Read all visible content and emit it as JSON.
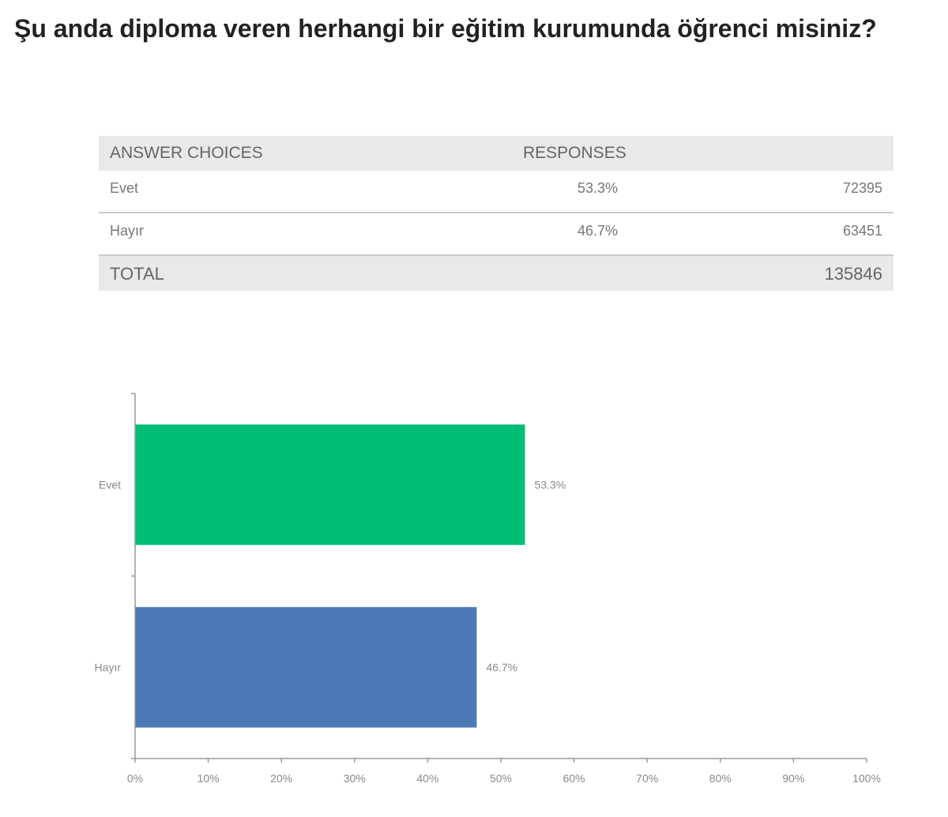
{
  "title": "Şu anda diploma veren herhangi bir eğitim kurumunda öğrenci misiniz?",
  "table": {
    "header_choices": "ANSWER CHOICES",
    "header_responses": "RESPONSES",
    "rows": [
      {
        "label": "Evet",
        "percent": "53.3%",
        "count": "72395"
      },
      {
        "label": "Hayır",
        "percent": "46.7%",
        "count": "63451"
      }
    ],
    "total_label": "TOTAL",
    "total_count": "135846"
  },
  "chart_data": {
    "type": "bar",
    "orientation": "horizontal",
    "categories": [
      "Evet",
      "Hayır"
    ],
    "values": [
      53.3,
      46.7
    ],
    "data_labels": [
      "53.3%",
      "46.7%"
    ],
    "colors": [
      "#00bf75",
      "#4e79b7"
    ],
    "xlim": [
      0,
      100
    ],
    "x_ticks": [
      "0%",
      "10%",
      "20%",
      "30%",
      "40%",
      "50%",
      "60%",
      "70%",
      "80%",
      "90%",
      "100%"
    ],
    "grid": false,
    "title": "",
    "xlabel": "",
    "ylabel": ""
  }
}
